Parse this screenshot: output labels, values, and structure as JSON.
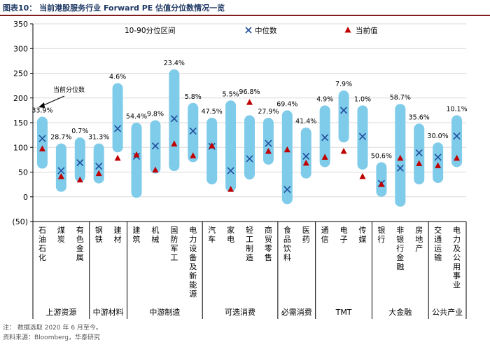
{
  "figure": {
    "title": "图表10：  当前港股服务行业 Forward PE 估值分位数情况一览",
    "note": "注：  数据选取 2020 年 6 月至今。",
    "source": "资料来源：Bloomberg，华泰研究"
  },
  "colors": {
    "band": "#7fcbea",
    "median": "#1f4e9c",
    "current": "#c00000",
    "axis": "#000000",
    "title_rule": "#7f1d1d"
  },
  "chart_data": {
    "type": "range-bar",
    "title": "当前港股服务行业 Forward PE 估值分位数情况一览",
    "ylim": [
      -50,
      350
    ],
    "yticks": [
      -50,
      0,
      50,
      100,
      150,
      200,
      250,
      300,
      350
    ],
    "ytick_labels": [
      "(50)",
      "0",
      "50",
      "100",
      "150",
      "200",
      "250",
      "300",
      "350"
    ],
    "legend": {
      "range": "10-90分位区间",
      "median": "中位数",
      "current": "当前值",
      "position": "top"
    },
    "annotation": {
      "text": "当前分位数",
      "target": "石油石化"
    },
    "categories": [
      "石油石化",
      "煤炭",
      "有色金属",
      "钢铁",
      "建材",
      "建筑",
      "机械",
      "国防军工",
      "电力设备及新能源",
      "汽车",
      "家电",
      "轻工制造",
      "商贸零售",
      "食品饮料",
      "医药",
      "通信",
      "电子",
      "传媒",
      "银行",
      "非银行金融",
      "房地产",
      "交通运输",
      "电力及公用事业"
    ],
    "p10": [
      57,
      10,
      30,
      27,
      90,
      -2,
      47,
      52,
      70,
      25,
      10,
      35,
      65,
      -15,
      37,
      60,
      110,
      55,
      0,
      -20,
      25,
      28,
      60
    ],
    "p90": [
      162,
      108,
      120,
      108,
      230,
      150,
      155,
      258,
      190,
      160,
      195,
      165,
      160,
      175,
      140,
      185,
      215,
      185,
      70,
      188,
      148,
      110,
      165
    ],
    "median": [
      118,
      53,
      69,
      62,
      138,
      82,
      103,
      158,
      133,
      102,
      53,
      77,
      108,
      15,
      82,
      120,
      175,
      122,
      27,
      58,
      89,
      80,
      123
    ],
    "current": [
      97,
      41,
      34,
      47,
      78,
      85,
      54,
      107,
      83,
      103,
      15,
      191,
      92,
      95,
      68,
      80,
      92,
      41,
      25,
      78,
      67,
      63,
      78
    ],
    "percentile_labels": [
      "33.9%",
      "28.7%",
      "0.7%",
      "31.3%",
      "4.6%",
      "54.4%",
      "9.8%",
      "23.4%",
      "5.8%",
      "47.5%",
      "5.5%",
      "96.8%",
      "27.9%",
      "69.4%",
      "41.4%",
      "4.9%",
      "7.9%",
      "1.0%",
      "50.6%",
      "58.7%",
      "35.6%",
      "30.0%",
      "10.1%"
    ],
    "groups": [
      {
        "name": "上游资源",
        "count": 3
      },
      {
        "name": "中游材料",
        "count": 2
      },
      {
        "name": "中游制造",
        "count": 4
      },
      {
        "name": "可选消费",
        "count": 4
      },
      {
        "name": "必需消费",
        "count": 2
      },
      {
        "name": "TMT",
        "count": 3
      },
      {
        "name": "大金融",
        "count": 3
      },
      {
        "name": "公共产业",
        "count": 2
      }
    ]
  }
}
